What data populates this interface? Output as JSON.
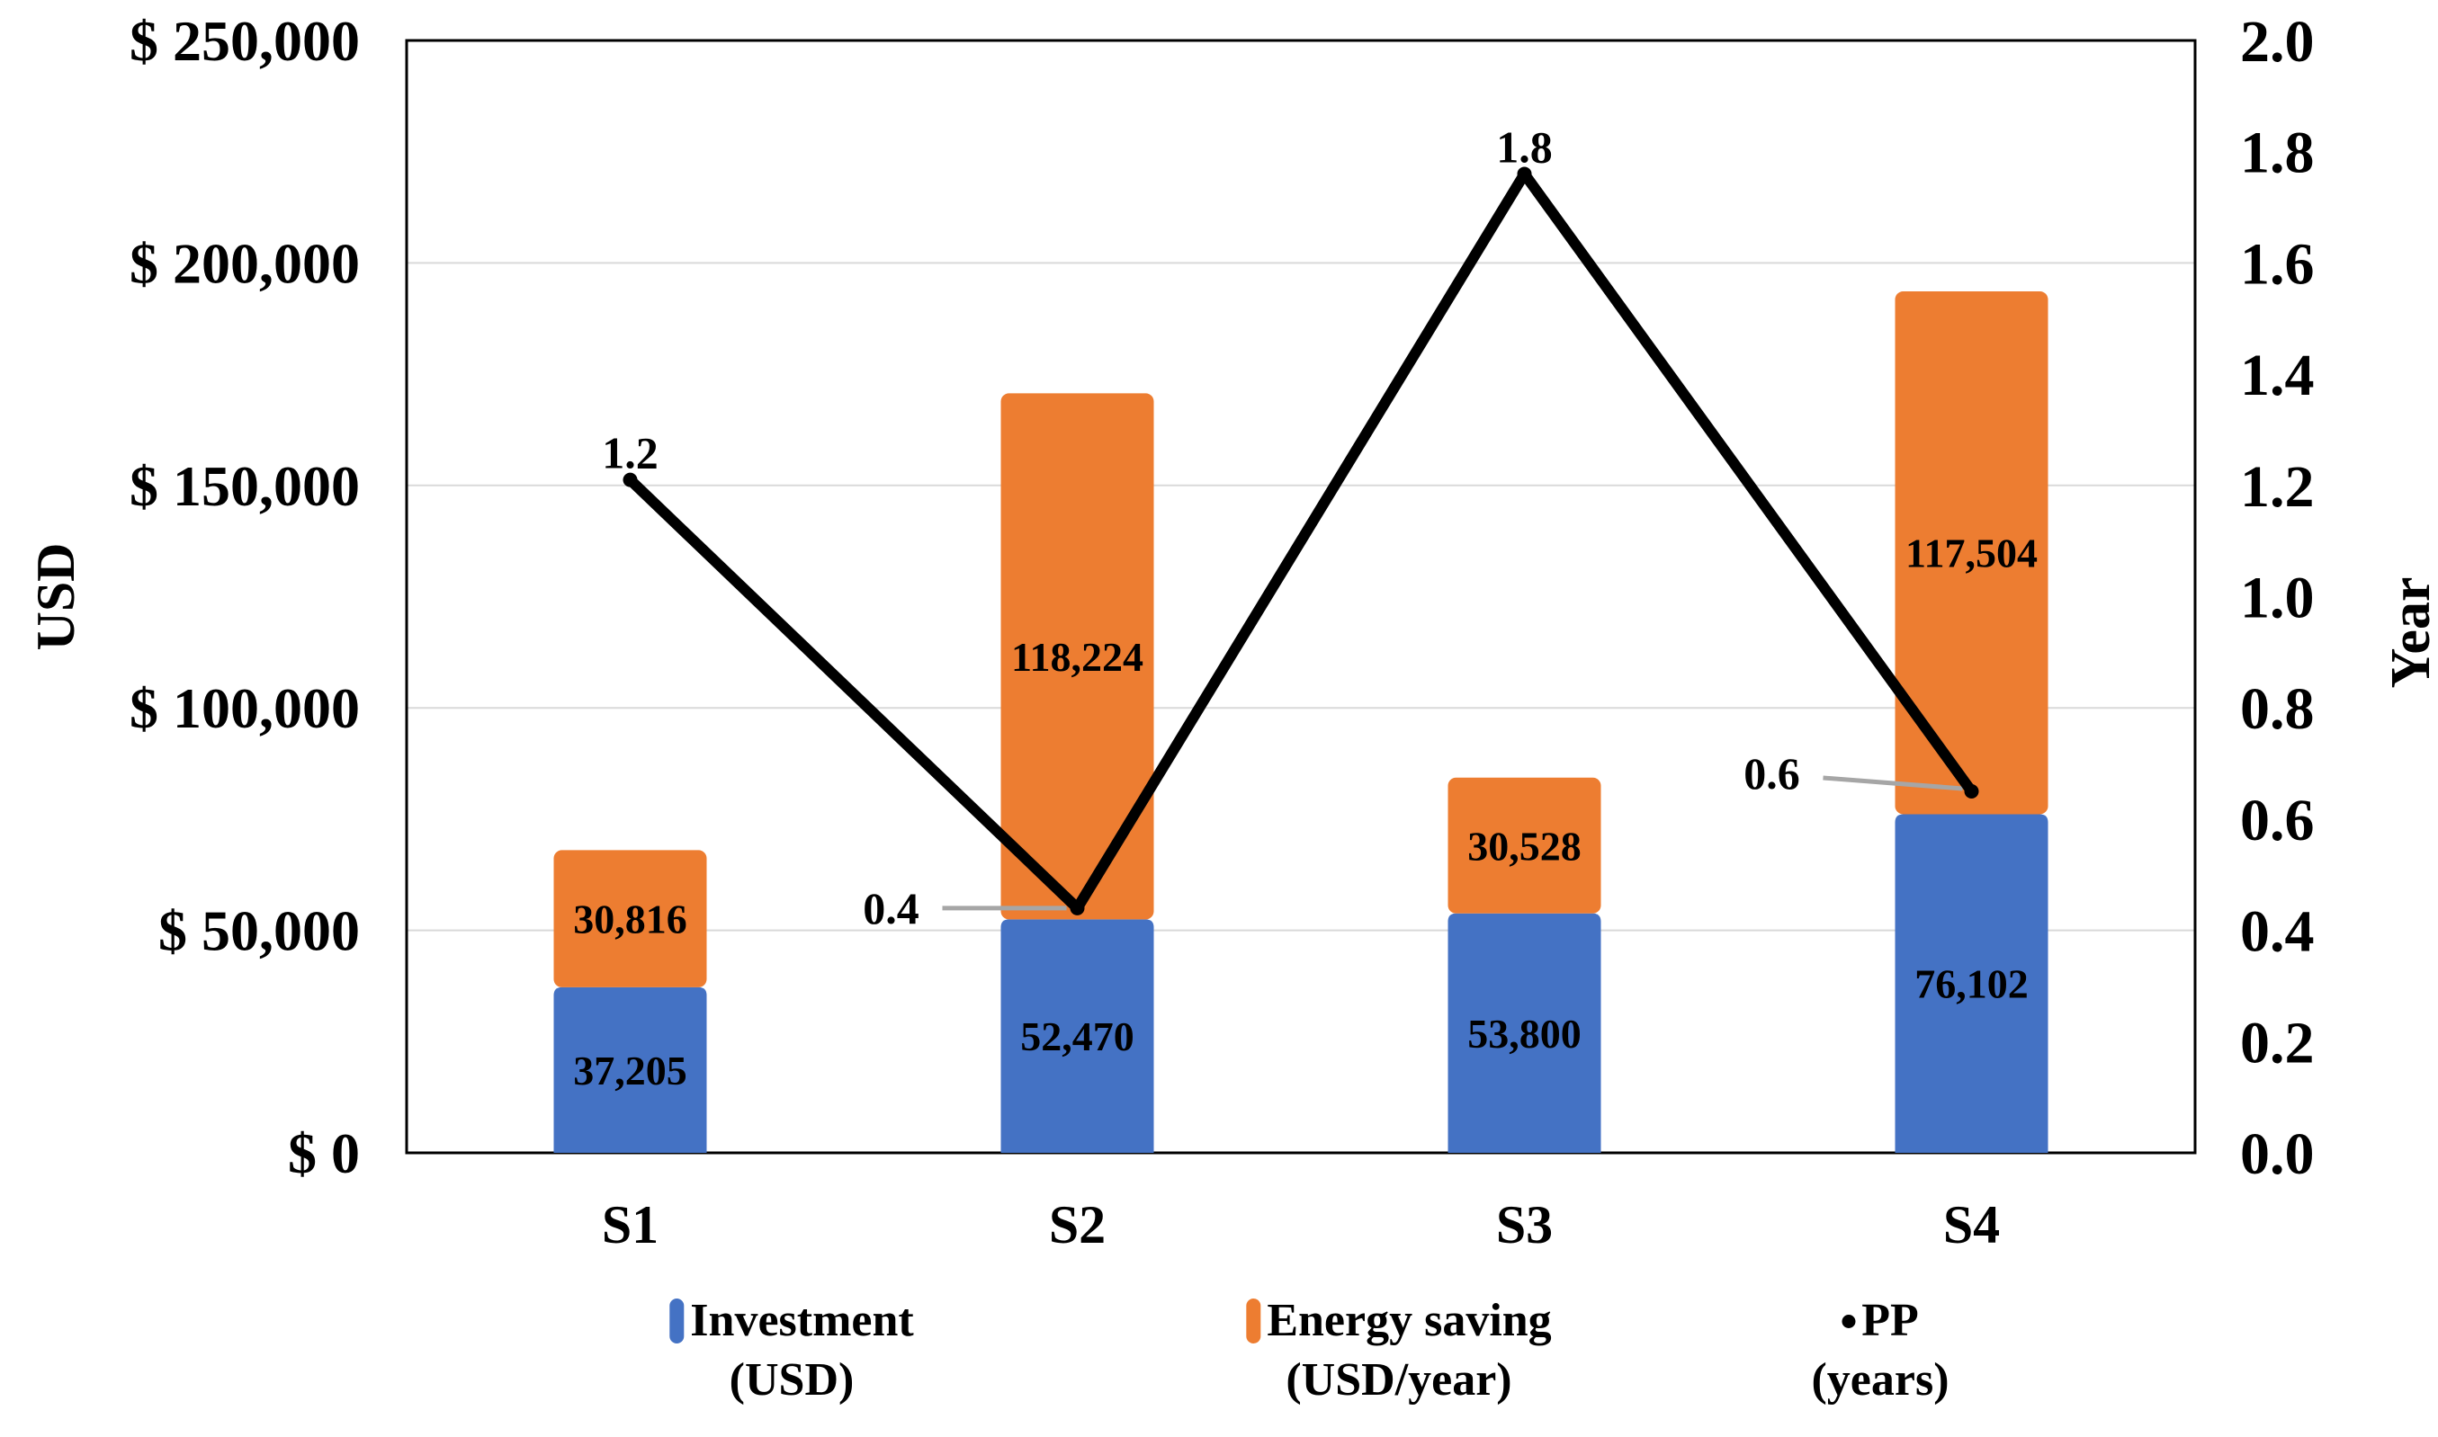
{
  "chart_data": {
    "type": "combo-stacked-bar-line",
    "title": "",
    "categories": [
      "S1",
      "S2",
      "S3",
      "S4"
    ],
    "series": [
      {
        "name": "Investment (USD)",
        "type": "bar",
        "stacked": true,
        "color": "#4472C4",
        "values": [
          37205,
          52470,
          53800,
          76102
        ],
        "labels": [
          "37,205",
          "52,470",
          "53,800",
          "76,102"
        ]
      },
      {
        "name": "Energy saving (USD/year)",
        "type": "bar",
        "stacked": true,
        "color": "#ED7D31",
        "values": [
          30816,
          118224,
          30528,
          117504
        ],
        "labels": [
          "30,816",
          "118,224",
          "30,528",
          "117,504"
        ]
      },
      {
        "name": "PP (years)",
        "type": "line",
        "axis": "right",
        "color": "#000000",
        "values": [
          1.21,
          0.44,
          1.76,
          0.65
        ],
        "labels": [
          "1.2",
          "0.4",
          "1.8",
          "0.6"
        ]
      }
    ],
    "left_axis": {
      "title": "USD",
      "min": 0,
      "max": 250000,
      "step": 50000,
      "tick_labels": [
        "$ 250,000",
        "$ 200,000",
        "$ 150,000",
        "$ 100,000",
        "$ 50,000",
        "$ 0"
      ]
    },
    "right_axis": {
      "title": "Year",
      "min": 0.0,
      "max": 2.0,
      "step": 0.2,
      "tick_labels": [
        "2.0",
        "1.8",
        "1.6",
        "1.4",
        "1.2",
        "1.0",
        "0.8",
        "0.6",
        "0.4",
        "0.2",
        "0.0"
      ]
    },
    "grid": {
      "show": true,
      "color": "#D9D9D9",
      "interval_left_axis": 50000
    },
    "legend_position": "bottom",
    "legend": [
      {
        "marker": "bar",
        "color": "#4472C4",
        "lines": [
          "Investment",
          "(USD)"
        ]
      },
      {
        "marker": "bar",
        "color": "#ED7D31",
        "lines": [
          "Energy saving",
          "(USD/year)"
        ]
      },
      {
        "marker": "dot",
        "color": "#000000",
        "lines": [
          "PP",
          "(years)"
        ]
      }
    ],
    "colors": {
      "plot_border": "#000000",
      "line_series": "#000000",
      "leader_line": "#A6A6A6",
      "gridline": "#D9D9D9"
    }
  }
}
